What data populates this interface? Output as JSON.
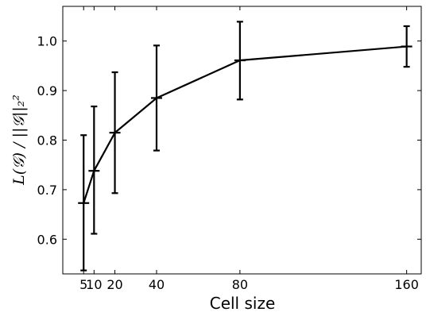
{
  "chart_data": {
    "type": "line",
    "xlabel": "Cell size",
    "ylabel": "L(𝒢) / ||𝒢||₂²",
    "xlim": [
      -5,
      167
    ],
    "ylim": [
      0.53,
      1.07
    ],
    "xticks": [
      5,
      10,
      20,
      40,
      80,
      160
    ],
    "xtick_labels": [
      "5",
      "10",
      "20",
      "40",
      "80",
      "160"
    ],
    "yticks": [
      0.6,
      0.7,
      0.8,
      0.9,
      1.0
    ],
    "ytick_labels": [
      "0.6",
      "0.7",
      "0.8",
      "0.9",
      "1.0"
    ],
    "grid": false,
    "series": [
      {
        "x": [
          5,
          10,
          20,
          40,
          80,
          160
        ],
        "y": [
          0.673,
          0.738,
          0.815,
          0.885,
          0.961,
          0.989
        ],
        "err_low": [
          0.537,
          0.611,
          0.693,
          0.779,
          0.882,
          0.948
        ],
        "err_high": [
          0.81,
          0.868,
          0.937,
          0.991,
          1.039,
          1.03
        ],
        "color": "#000000"
      }
    ]
  }
}
